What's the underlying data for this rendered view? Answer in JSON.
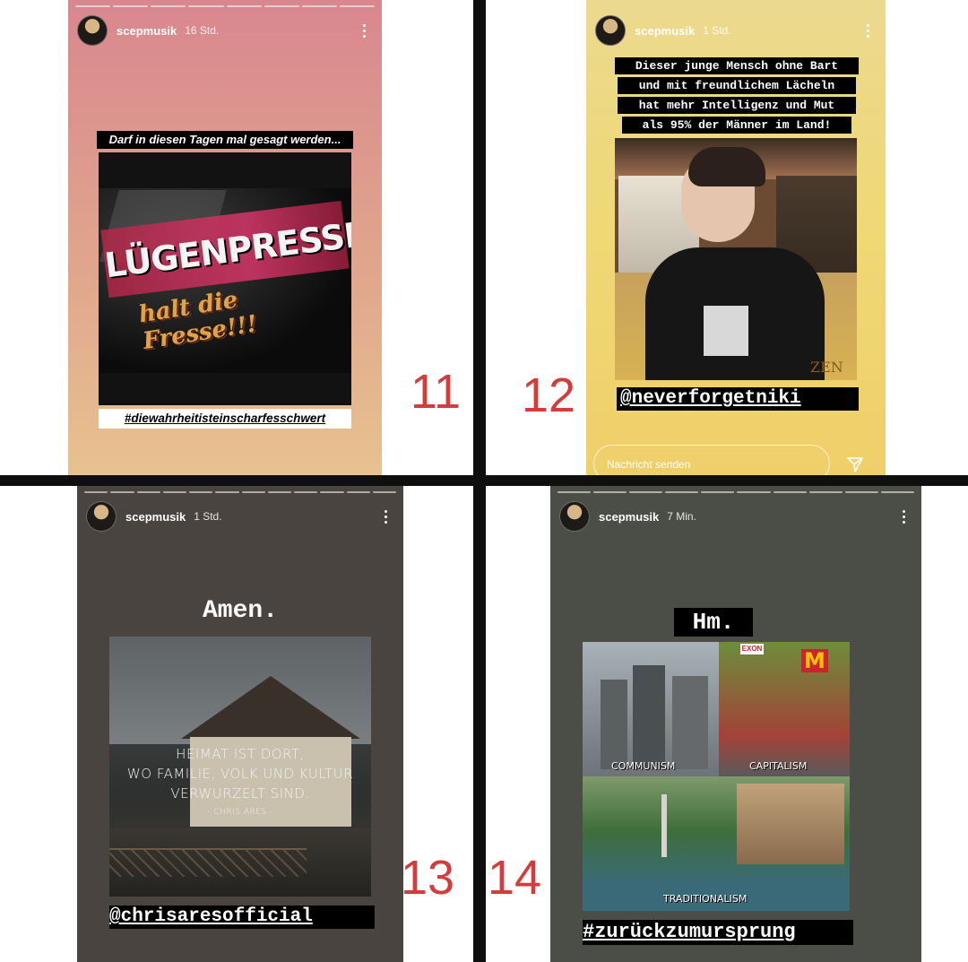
{
  "stories": [
    {
      "username": "scepmusik",
      "time": "16 Std.",
      "caption": "Darf in diesen Tagen mal gesagt werden...",
      "image_text_1": "LÜGENPRESSE",
      "image_text_2": "halt die Fresse!!!",
      "hashtag": "#diewahrheitisteinscharfesschwert",
      "number": "11"
    },
    {
      "username": "scepmusik",
      "time": "1 Std.",
      "caption_lines": [
        "Dieser junge Mensch ohne Bart",
        "und mit freundlichem Lächeln",
        "hat mehr Intelligenz und Mut",
        "als 95% der Männer im Land!"
      ],
      "mention": "@neverforgetniki",
      "image_text": "ZEN",
      "message_placeholder": "Nachricht senden",
      "number": "12"
    },
    {
      "username": "scepmusik",
      "time": "1 Std.",
      "title": "Amen.",
      "quote_lines": [
        "HEIMAT IST DORT,",
        "WO FAMILIE, VOLK UND KULTUR",
        "VERWURZELT SIND."
      ],
      "quote_author": "- CHRIS ARES -",
      "mention": "@chrisaresofficial",
      "number": "13"
    },
    {
      "username": "scepmusik",
      "time": "7 Min.",
      "title": "Hm.",
      "labels": [
        "COMMUNISM",
        "CAPITALISM",
        "TRADITIONALISM"
      ],
      "brand_text": "EXON",
      "hashtag": "#zurückzumursprung",
      "number": "14"
    }
  ]
}
